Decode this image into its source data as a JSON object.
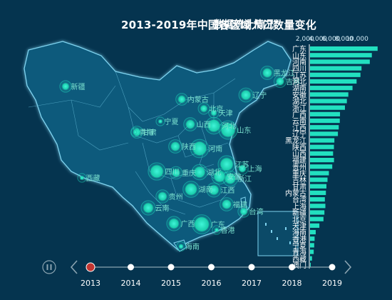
{
  "title": "2013-2019年中国各区域人口数量变化",
  "subtitle": "数据统计情况",
  "colors": {
    "background": "#05344f",
    "land": "#0b5a7c",
    "border": "#7fd3ef",
    "accent": "#22e0c0",
    "bar": "#22e0c0",
    "timeline": "#8aa3b0",
    "current_year": "#c23531"
  },
  "map_labels": [
    "新疆",
    "西藏",
    "内蒙古",
    "黑龙江",
    "吉林",
    "辽宁",
    "北京",
    "天津",
    "宁夏",
    "甘肃",
    "青海",
    "山西",
    "河北",
    "山东",
    "陕西",
    "河南",
    "江苏",
    "四川",
    "重庆",
    "湖北",
    "安徽",
    "上海",
    "浙江",
    "湖南",
    "江西",
    "贵州",
    "云南",
    "广西",
    "广东",
    "福建",
    "台湾",
    "海南",
    "香港"
  ],
  "timeline": {
    "years": [
      "2013",
      "2014",
      "2015",
      "2016",
      "2017",
      "2018",
      "2019"
    ],
    "current": "2013",
    "play_icon": "pause-icon"
  },
  "chart_data": {
    "type": "bar",
    "title": "2013-2019年中国各区域人口数量变化",
    "subtitle": "数据统计情况",
    "orientation": "horizontal",
    "year": "2013",
    "x_ticks": [
      "2,000",
      "4,000",
      "6,000",
      "8,000",
      "10,000"
    ],
    "xlim": [
      0,
      11000
    ],
    "categories": [
      "广东",
      "山东",
      "河南",
      "四川",
      "江苏",
      "河北",
      "湖南",
      "安徽",
      "湖北",
      "浙江",
      "广西",
      "云南",
      "江西",
      "辽宁",
      "黑龙江",
      "陕西",
      "山西",
      "福建",
      "贵州",
      "重庆",
      "吉林",
      "甘肃",
      "内蒙古",
      "台湾",
      "上海",
      "新疆",
      "北京",
      "天津",
      "海南",
      "香港",
      "宁夏",
      "青海",
      "西藏",
      "澳门"
    ],
    "values": [
      10644,
      9733,
      9413,
      8107,
      7939,
      7333,
      6691,
      6030,
      5799,
      5498,
      4719,
      4687,
      4522,
      4390,
      3835,
      3764,
      3630,
      3774,
      3502,
      2970,
      2751,
      2582,
      2498,
      2337,
      2415,
      2264,
      2115,
      1472,
      895,
      719,
      654,
      578,
      312,
      61
    ]
  }
}
